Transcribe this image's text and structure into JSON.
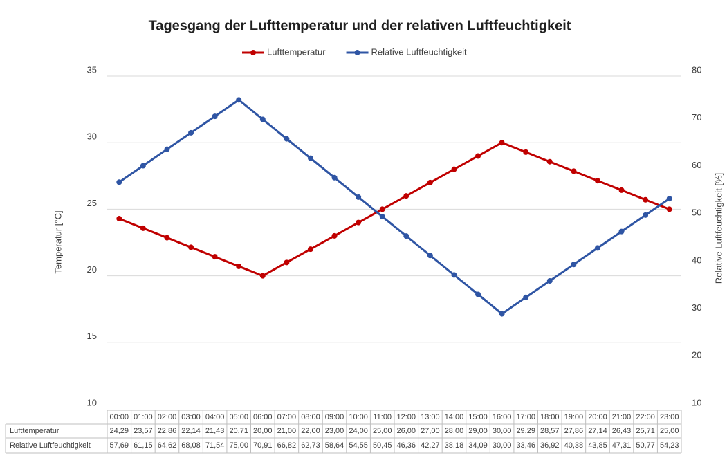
{
  "chart_data": {
    "type": "line",
    "title": "Tagesgang der Lufttemperatur und der relativen Luftfeuchtigkeit",
    "y_label": "Temperatur [°C]",
    "y2_label": "Relative Luftfeuchtigkeit [%]",
    "categories": [
      "00:00",
      "01:00",
      "02:00",
      "03:00",
      "04:00",
      "05:00",
      "06:00",
      "07:00",
      "08:00",
      "09:00",
      "10:00",
      "11:00",
      "12:00",
      "13:00",
      "14:00",
      "15:00",
      "16:00",
      "17:00",
      "18:00",
      "19:00",
      "20:00",
      "21:00",
      "22:00",
      "23:00"
    ],
    "series": [
      {
        "name": "Lufttemperatur",
        "color": "#c00000",
        "values": [
          24.29,
          23.57,
          22.86,
          22.14,
          21.43,
          20.71,
          20.0,
          21.0,
          22.0,
          23.0,
          24.0,
          25.0,
          26.0,
          27.0,
          28.0,
          29.0,
          30.0,
          29.29,
          28.57,
          27.86,
          27.14,
          26.43,
          25.71,
          25.0
        ],
        "value_labels": [
          "24,29",
          "23,57",
          "22,86",
          "22,14",
          "21,43",
          "20,71",
          "20,00",
          "21,00",
          "22,00",
          "23,00",
          "24,00",
          "25,00",
          "26,00",
          "27,00",
          "28,00",
          "29,00",
          "30,00",
          "29,29",
          "28,57",
          "27,86",
          "27,14",
          "26,43",
          "25,71",
          "25,00"
        ]
      },
      {
        "name": "Relative Luftfeuchtigkeit",
        "color": "#2f55a4",
        "axis": "y2",
        "values": [
          57.69,
          61.15,
          64.62,
          68.08,
          71.54,
          75.0,
          70.91,
          66.82,
          62.73,
          58.64,
          54.55,
          50.45,
          46.36,
          42.27,
          38.18,
          34.09,
          30.0,
          33.46,
          36.92,
          40.38,
          43.85,
          47.31,
          50.77,
          54.23
        ],
        "value_labels": [
          "57,69",
          "61,15",
          "64,62",
          "68,08",
          "71,54",
          "75,00",
          "70,91",
          "66,82",
          "62,73",
          "58,64",
          "54,55",
          "50,45",
          "46,36",
          "42,27",
          "38,18",
          "34,09",
          "30,00",
          "33,46",
          "36,92",
          "40,38",
          "43,85",
          "47,31",
          "50,77",
          "54,23"
        ]
      }
    ],
    "ylim": [
      10,
      35
    ],
    "yticks": [
      10,
      15,
      20,
      25,
      30,
      35
    ],
    "y2lim": [
      10,
      80
    ],
    "y2ticks": [
      10,
      20,
      30,
      40,
      50,
      60,
      70,
      80
    ],
    "grid": true,
    "legend": "top"
  }
}
